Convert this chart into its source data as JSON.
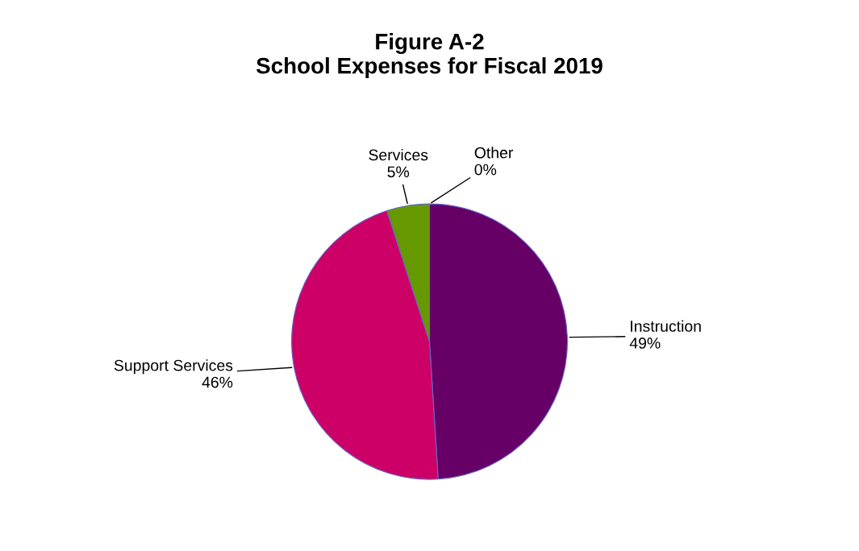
{
  "chart_data": {
    "type": "pie",
    "title": "Figure A-2\nSchool Expenses for Fiscal 2019",
    "categories": [
      "Instruction",
      "Support Services",
      "Services",
      "Other"
    ],
    "values": [
      49,
      46,
      5,
      0
    ],
    "value_labels": [
      "49%",
      "46%",
      "5%",
      "0%"
    ],
    "colors": [
      "#660066",
      "#cc0066",
      "#669900",
      "#6666cc"
    ],
    "legend": false
  }
}
